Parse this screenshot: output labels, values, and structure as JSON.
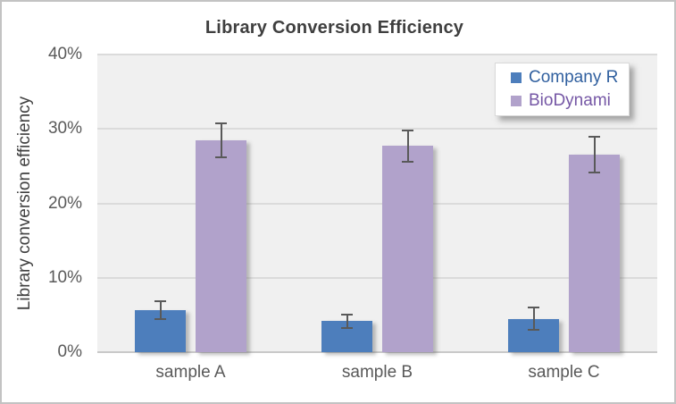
{
  "chart_data": {
    "type": "bar",
    "title": "Library Conversion Efficiency",
    "ylabel": "Library conversion efficiency",
    "xlabel": "",
    "categories": [
      "sample A",
      "sample B",
      "sample C"
    ],
    "series": [
      {
        "name": "Company R",
        "color": "#4d7ebc",
        "label_color": "#31609f",
        "values": [
          5.6,
          4.2,
          4.5
        ],
        "errors": [
          1.2,
          0.9,
          1.5
        ]
      },
      {
        "name": "BioDynami",
        "color": "#b1a2cb",
        "label_color": "#7557a5",
        "values": [
          28.5,
          27.7,
          26.5
        ],
        "errors": [
          2.3,
          2.1,
          2.4
        ]
      }
    ],
    "ylim": [
      0,
      40
    ],
    "yticks": [
      "0%",
      "10%",
      "20%",
      "30%",
      "40%"
    ],
    "ytick_values": [
      0,
      10,
      20,
      30,
      40
    ],
    "grid": true,
    "legend_position": "top-right",
    "error_bars": true,
    "colors": {
      "plot_background": "#f0f0f0",
      "gridline": "#dbdbdb",
      "axis_line": "#c9c9c9",
      "error_bar": "#595959",
      "tick_text": "#595959",
      "title_text": "#3f3f3f",
      "frame_border": "#c3c3c3",
      "legend_background": "#ffffff"
    }
  }
}
